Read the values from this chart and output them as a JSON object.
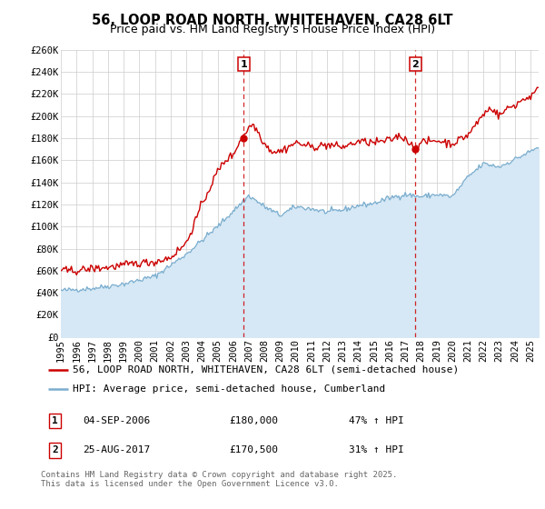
{
  "title": "56, LOOP ROAD NORTH, WHITEHAVEN, CA28 6LT",
  "subtitle": "Price paid vs. HM Land Registry's House Price Index (HPI)",
  "ylim": [
    0,
    260000
  ],
  "xlim_start": 1995.0,
  "xlim_end": 2025.5,
  "yticks": [
    0,
    20000,
    40000,
    60000,
    80000,
    100000,
    120000,
    140000,
    160000,
    180000,
    200000,
    220000,
    240000,
    260000
  ],
  "ytick_labels": [
    "£0",
    "£20K",
    "£40K",
    "£60K",
    "£80K",
    "£100K",
    "£120K",
    "£140K",
    "£160K",
    "£180K",
    "£200K",
    "£220K",
    "£240K",
    "£260K"
  ],
  "xticks": [
    1995,
    1996,
    1997,
    1998,
    1999,
    2000,
    2001,
    2002,
    2003,
    2004,
    2005,
    2006,
    2007,
    2008,
    2009,
    2010,
    2011,
    2012,
    2013,
    2014,
    2015,
    2016,
    2017,
    2018,
    2019,
    2020,
    2021,
    2022,
    2023,
    2024,
    2025
  ],
  "red_line_color": "#cc0000",
  "blue_line_color": "#7aadce",
  "blue_fill_color": "#d6e8f5",
  "marker_color": "#cc0000",
  "vline_color": "#cc0000",
  "grid_color": "#cccccc",
  "bg_color": "#ffffff",
  "sale1_x": 2006.67,
  "sale1_y": 180000,
  "sale2_x": 2017.64,
  "sale2_y": 170500,
  "sale1_date": "04-SEP-2006",
  "sale1_price": "£180,000",
  "sale1_hpi": "47% ↑ HPI",
  "sale2_date": "25-AUG-2017",
  "sale2_price": "£170,500",
  "sale2_hpi": "31% ↑ HPI",
  "legend1_text": "56, LOOP ROAD NORTH, WHITEHAVEN, CA28 6LT (semi-detached house)",
  "legend2_text": "HPI: Average price, semi-detached house, Cumberland",
  "footer_text": "Contains HM Land Registry data © Crown copyright and database right 2025.\nThis data is licensed under the Open Government Licence v3.0.",
  "title_fontsize": 10.5,
  "subtitle_fontsize": 9,
  "tick_fontsize": 7.5,
  "legend_fontsize": 8,
  "table_fontsize": 8,
  "footer_fontsize": 6.5
}
